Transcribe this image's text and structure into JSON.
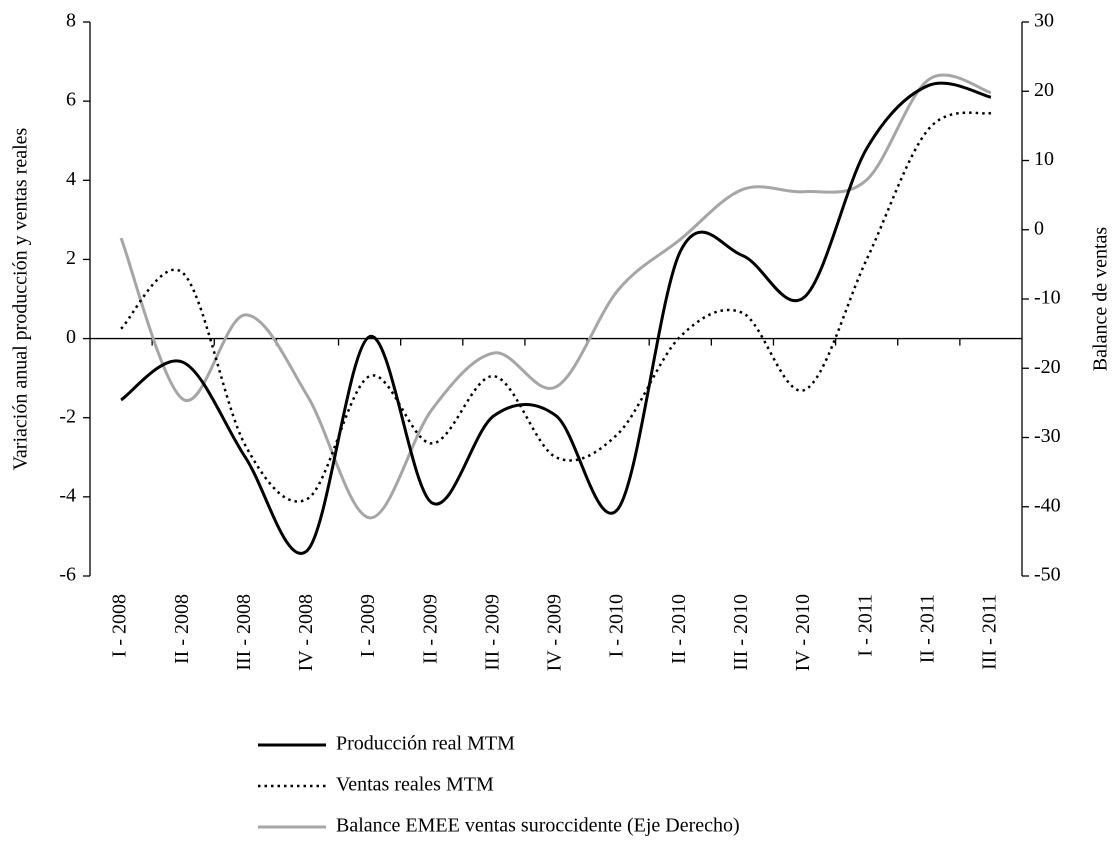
{
  "chart_data": {
    "type": "line",
    "y_label": "Variación  anual producción y ventas  reales",
    "y2_label": "Balance de ventas",
    "categories": [
      "I - 2008",
      "II - 2008",
      "III - 2008",
      "IV - 2008",
      "I - 2009",
      "II - 2009",
      "III - 2009",
      "IV - 2009",
      "I - 2010",
      "II - 2010",
      "III - 2010",
      "IV - 2010",
      "I - 2011",
      "II - 2011",
      "III - 2011"
    ],
    "series": [
      {
        "name": "Producción real MTM",
        "color": "#000000",
        "dash": "solid",
        "values": [
          -1.55,
          -0.6,
          -3.0,
          -5.35,
          0.05,
          -4.15,
          -1.95,
          -1.95,
          -4.3,
          2.2,
          2.1,
          1.05,
          4.8,
          6.4,
          6.1
        ]
      },
      {
        "name": "Ventas reales MTM",
        "color": "#000000",
        "dash": "dotted",
        "values": [
          0.25,
          1.65,
          -2.7,
          -4.05,
          -0.95,
          -2.65,
          -0.95,
          -3.0,
          -2.4,
          0.05,
          0.65,
          -1.3,
          2.0,
          5.3,
          5.7
        ]
      },
      {
        "name": "Balance EMEE ventas suroccidente (Eje Derecho)",
        "color": "#a6a6a6",
        "dash": "solid",
        "axis": "y2",
        "values": [
          -1.2,
          -24.5,
          -12.3,
          -24.0,
          -41.6,
          -26.0,
          -17.8,
          -22.7,
          -8.7,
          -1.4,
          5.8,
          5.5,
          7.2,
          21.7,
          19.8
        ]
      }
    ],
    "ylim": [
      -6,
      8
    ],
    "yticks": [
      -6,
      -4,
      -2,
      0,
      2,
      4,
      6,
      8
    ],
    "y2lim": [
      -50,
      30
    ],
    "y2ticks": [
      -50,
      -40,
      -30,
      -20,
      -10,
      0,
      10,
      20,
      30
    ],
    "smooth": true
  }
}
